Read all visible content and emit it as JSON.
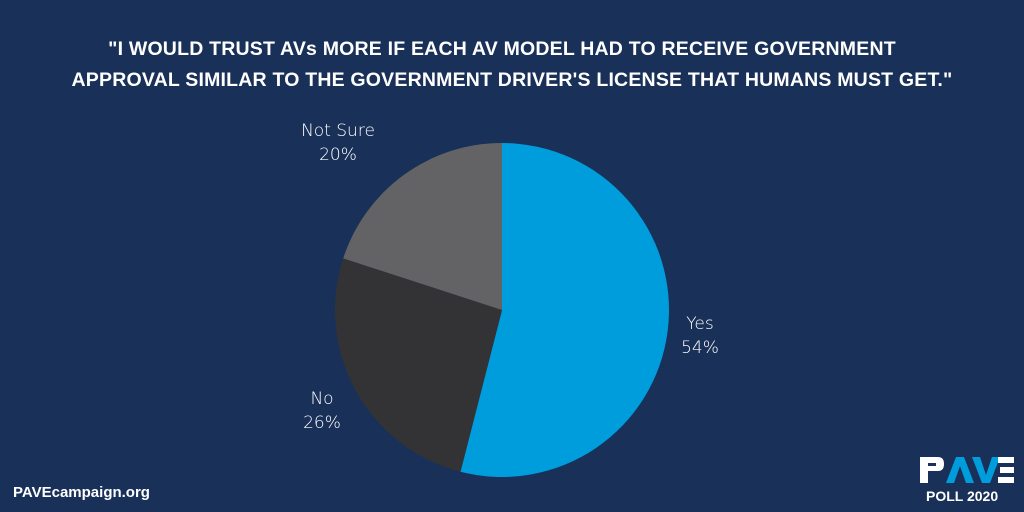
{
  "title": {
    "line1": "\"I WOULD TRUST AVs MORE IF EACH AV MODEL HAD TO RECEIVE GOVERNMENT",
    "line2": "APPROVAL SIMILAR TO THE GOVERNMENT DRIVER'S LICENSE THAT HUMANS MUST GET.\""
  },
  "footer": {
    "website": "PAVEcampaign.org",
    "logo_text": "PAVE",
    "poll": "POLL 2020"
  },
  "colors": {
    "background": "#193059",
    "yes": "#009ddc",
    "no": "#333335",
    "not_sure": "#636366",
    "accent": "#009ddc"
  },
  "chart_data": {
    "type": "pie",
    "title": "\"I WOULD TRUST AVs MORE IF EACH AV MODEL HAD TO RECEIVE GOVERNMENT APPROVAL SIMILAR TO THE GOVERNMENT DRIVER'S LICENSE THAT HUMANS MUST GET.\"",
    "categories": [
      "Yes",
      "No",
      "Not Sure"
    ],
    "values": [
      54,
      26,
      20
    ],
    "labels": [
      {
        "name": "Yes",
        "pct": "54%"
      },
      {
        "name": "No",
        "pct": "26%"
      },
      {
        "name": "Not Sure",
        "pct": "20%"
      }
    ],
    "start": "12 o'clock, clockwise",
    "legend": "none"
  }
}
